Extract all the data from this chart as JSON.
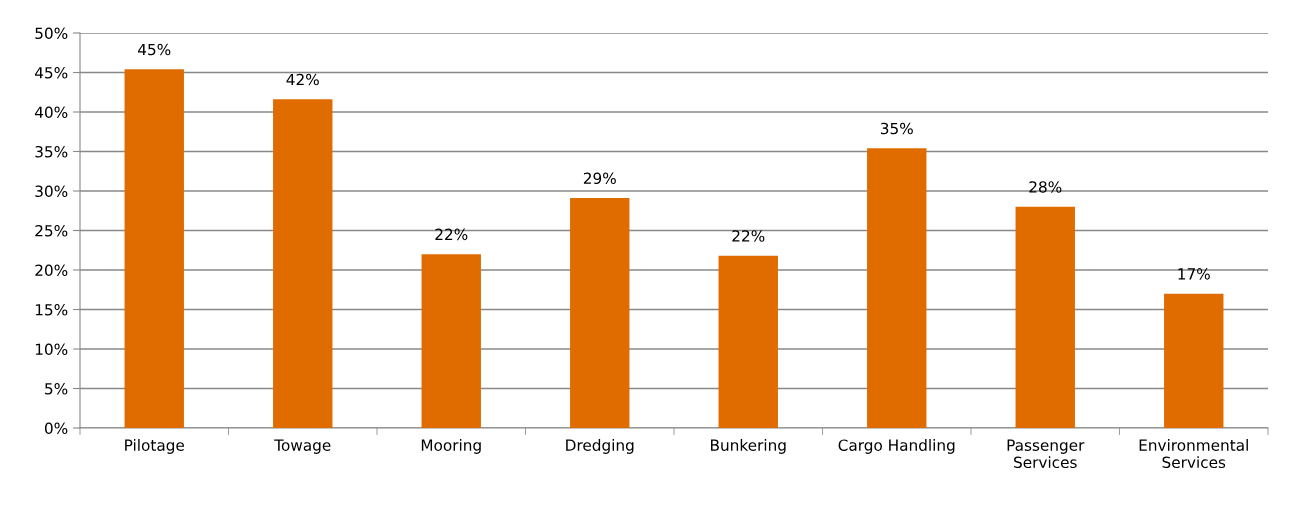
{
  "chart_data": {
    "type": "bar",
    "categories": [
      "Pilotage",
      "Towage",
      "Mooring",
      "Dredging",
      "Bunkering",
      "Cargo Handling",
      "Passenger\nServices",
      "Environmental\nServices"
    ],
    "values": [
      45.4,
      41.6,
      22.0,
      29.1,
      21.8,
      35.4,
      28.0,
      17.0
    ],
    "value_labels": [
      "45%",
      "42%",
      "22%",
      "29%",
      "22%",
      "35%",
      "28%",
      "17%"
    ],
    "color": "#e06c00",
    "ylim": [
      0,
      50
    ],
    "yticks": [
      {
        "value": 0,
        "label": "0%"
      },
      {
        "value": 5,
        "label": "5%"
      },
      {
        "value": 10,
        "label": "10%"
      },
      {
        "value": 15,
        "label": "15%"
      },
      {
        "value": 20,
        "label": "20%"
      },
      {
        "value": 25,
        "label": "25%"
      },
      {
        "value": 30,
        "label": "30%"
      },
      {
        "value": 35,
        "label": "35%"
      },
      {
        "value": 40,
        "label": "40%"
      },
      {
        "value": 45,
        "label": "45%"
      },
      {
        "value": 50,
        "label": "50%"
      }
    ],
    "grid": "y",
    "legend": false
  }
}
